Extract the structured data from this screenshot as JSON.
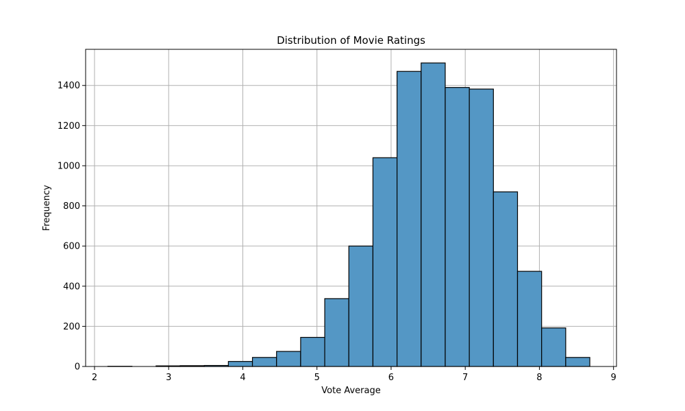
{
  "chart_data": {
    "type": "bar",
    "title": "Distribution of Movie Ratings",
    "xlabel": "Vote Average",
    "ylabel": "Frequency",
    "xlim": [
      1.88,
      9.04
    ],
    "ylim": [
      0,
      1580
    ],
    "xticks": [
      2,
      3,
      4,
      5,
      6,
      7,
      8,
      9
    ],
    "yticks": [
      0,
      200,
      400,
      600,
      800,
      1000,
      1200,
      1400
    ],
    "grid": true,
    "bin_edges": [
      2.18,
      2.505,
      2.83,
      3.155,
      3.48,
      3.805,
      4.13,
      4.455,
      4.78,
      5.105,
      5.43,
      5.755,
      6.08,
      6.405,
      6.73,
      7.055,
      7.38,
      7.705,
      8.03,
      8.355,
      8.68
    ],
    "values": [
      1,
      0,
      3,
      4,
      5,
      25,
      45,
      75,
      145,
      338,
      600,
      1040,
      1470,
      1512,
      1390,
      1382,
      870,
      474,
      192,
      45
    ]
  }
}
